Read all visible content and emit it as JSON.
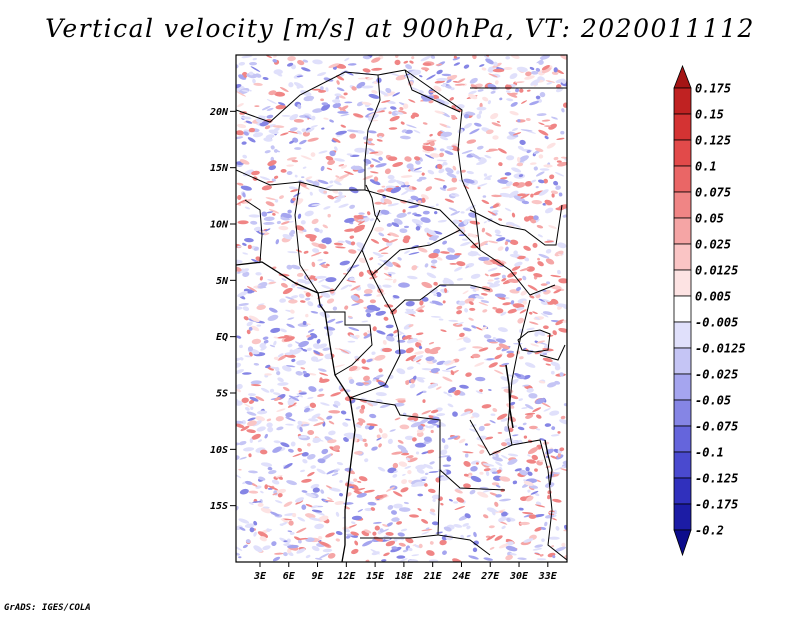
{
  "title": "Vertical velocity [m/s] at 900hPa, VT: 2020011112",
  "footer": "GrADS: IGES/COLA",
  "map": {
    "lat_labels": [
      "20N",
      "15N",
      "10N",
      "5N",
      "EQ",
      "5S",
      "10S",
      "15S"
    ],
    "lat_values": [
      20,
      15,
      10,
      5,
      0,
      -5,
      -10,
      -15
    ],
    "lon_labels": [
      "3E",
      "6E",
      "9E",
      "12E",
      "15E",
      "18E",
      "21E",
      "24E",
      "27E",
      "30E",
      "33E"
    ],
    "lon_values": [
      3,
      6,
      9,
      12,
      15,
      18,
      21,
      24,
      27,
      30,
      33
    ],
    "lon_range": [
      0.5,
      35
    ],
    "lat_range": [
      -20,
      25
    ]
  },
  "colorbar": {
    "labels": [
      "0.175",
      "0.15",
      "0.125",
      "0.1",
      "0.075",
      "0.05",
      "0.025",
      "0.0125",
      "0.005",
      "-0.005",
      "-0.0125",
      "-0.025",
      "-0.05",
      "-0.075",
      "-0.1",
      "-0.125",
      "-0.175",
      "-0.2"
    ],
    "colors": [
      "#a41515",
      "#c02222",
      "#d43333",
      "#e24a4a",
      "#ea6666",
      "#f08585",
      "#f5a5a5",
      "#fac5c5",
      "#fde3e3",
      "#ffffff",
      "#e0e0fb",
      "#c5c5f5",
      "#a5a5ef",
      "#8585e5",
      "#6565dc",
      "#4a4acf",
      "#3030bd",
      "#1c1ca5",
      "#0c0c8c"
    ]
  }
}
